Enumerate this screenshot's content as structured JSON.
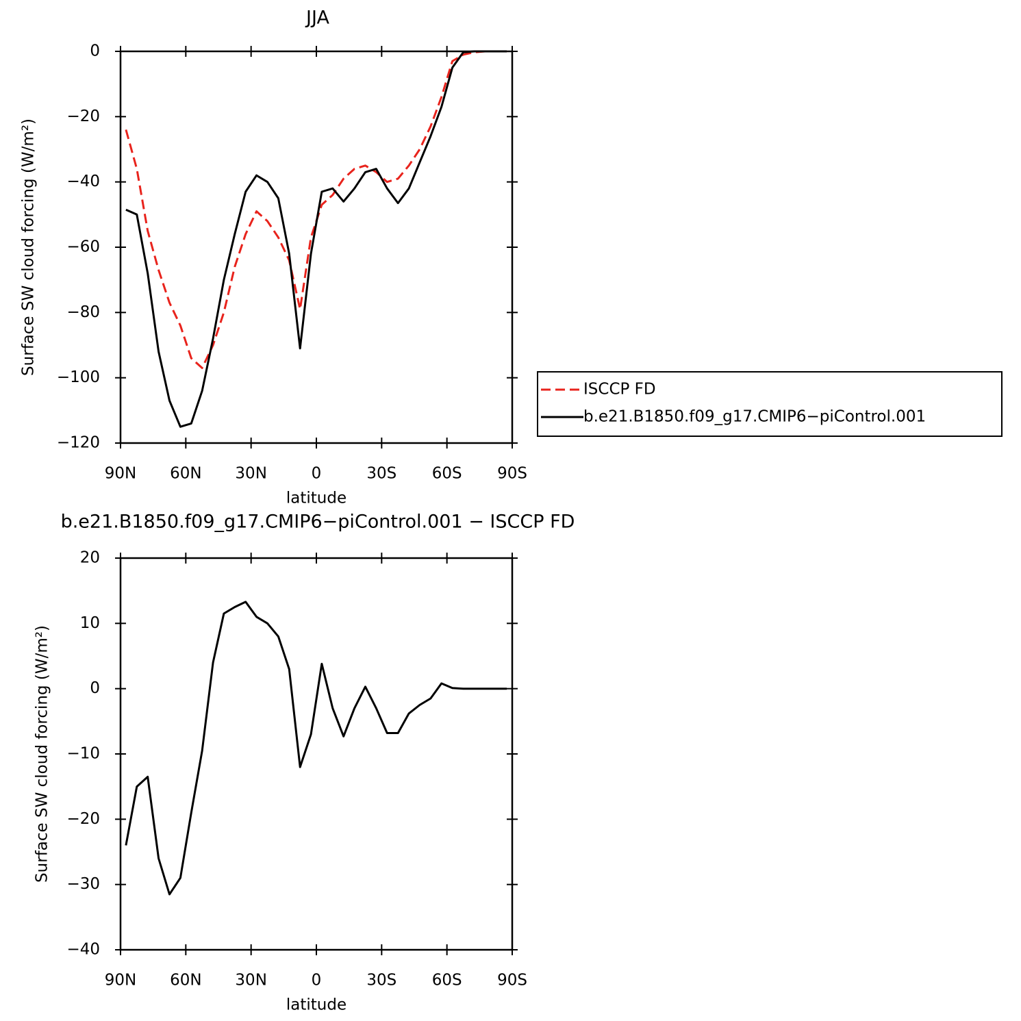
{
  "chart_data": [
    {
      "type": "line",
      "title": "JJA",
      "x_label": "latitude",
      "y_label": "Surface SW cloud forcing (W/m²)",
      "x": [
        87.5,
        82.5,
        77.5,
        72.5,
        67.5,
        62.5,
        57.5,
        52.5,
        47.5,
        42.5,
        37.5,
        32.5,
        27.5,
        22.5,
        17.5,
        12.5,
        7.5,
        2.5,
        -2.5,
        -7.5,
        -12.5,
        -17.5,
        -22.5,
        -27.5,
        -32.5,
        -37.5,
        -42.5,
        -47.5,
        -52.5,
        -57.5,
        -62.5,
        -67.5,
        -72.5,
        -77.5,
        -82.5,
        -87.5
      ],
      "xlim": [
        90,
        -90
      ],
      "xticks": [
        {
          "value": 90,
          "label": "90N"
        },
        {
          "value": 60,
          "label": "60N"
        },
        {
          "value": 30,
          "label": "30N"
        },
        0,
        {
          "value": -30,
          "label": "30S"
        },
        {
          "value": -60,
          "label": "60S"
        },
        {
          "value": -90,
          "label": "90S"
        }
      ],
      "ylim": [
        -120,
        0
      ],
      "yticks": [
        {
          "value": -120,
          "label": "−120"
        },
        {
          "value": -100,
          "label": "−100"
        },
        {
          "value": -80,
          "label": "−80"
        },
        {
          "value": -60,
          "label": "−60"
        },
        {
          "value": -40,
          "label": "−40"
        },
        {
          "value": -20,
          "label": "−20"
        },
        0
      ],
      "legend": "right",
      "series": [
        {
          "name": "ISCCP FD",
          "color": "#e8231c",
          "style": "dashed",
          "values": [
            -24,
            -36,
            -55,
            -67,
            -77,
            -84,
            -94,
            -97,
            -90,
            -80,
            -66,
            -56,
            -49,
            -52,
            -57,
            -64,
            -79,
            -57,
            -47,
            -44,
            -39,
            -36,
            -35,
            -37,
            -40,
            -39,
            -35,
            -30,
            -23,
            -14,
            -3,
            -1,
            -0.3,
            0,
            0,
            0
          ]
        },
        {
          "name": "b.e21.B1850.f09_g17.CMIP6−piControl.001",
          "color": "#000000",
          "style": "solid",
          "values": [
            -48.5,
            -50,
            -68,
            -92,
            -107,
            -115,
            -114,
            -104,
            -88,
            -70,
            -56,
            -43,
            -38,
            -40,
            -45,
            -62,
            -91,
            -62,
            -43,
            -42,
            -46,
            -42,
            -37,
            -36,
            -42,
            -46.5,
            -42,
            -34,
            -26,
            -17,
            -5,
            -0.3,
            0,
            0,
            0,
            0
          ]
        }
      ]
    },
    {
      "type": "line",
      "title": "b.e21.B1850.f09_g17.CMIP6−piControl.001  −  ISCCP FD",
      "x_label": "latitude",
      "y_label": "Surface SW cloud forcing (W/m²)",
      "x": [
        87.5,
        82.5,
        77.5,
        72.5,
        67.5,
        62.5,
        57.5,
        52.5,
        47.5,
        42.5,
        37.5,
        32.5,
        27.5,
        22.5,
        17.5,
        12.5,
        7.5,
        2.5,
        -2.5,
        -7.5,
        -12.5,
        -17.5,
        -22.5,
        -27.5,
        -32.5,
        -37.5,
        -42.5,
        -47.5,
        -52.5,
        -57.5,
        -62.5,
        -67.5,
        -72.5,
        -77.5,
        -82.5,
        -87.5
      ],
      "xlim": [
        90,
        -90
      ],
      "xticks": [
        {
          "value": 90,
          "label": "90N"
        },
        {
          "value": 60,
          "label": "60N"
        },
        {
          "value": 30,
          "label": "30N"
        },
        0,
        {
          "value": -30,
          "label": "30S"
        },
        {
          "value": -60,
          "label": "60S"
        },
        {
          "value": -90,
          "label": "90S"
        }
      ],
      "ylim": [
        -40,
        20
      ],
      "yticks": [
        {
          "value": -40,
          "label": "−40"
        },
        {
          "value": -30,
          "label": "−30"
        },
        {
          "value": -20,
          "label": "−20"
        },
        {
          "value": -10,
          "label": "−10"
        },
        0,
        10,
        20
      ],
      "color": "#000000",
      "values": [
        -24,
        -15,
        -13.5,
        -26,
        -31.5,
        -29,
        -19,
        -9.5,
        4,
        11.5,
        12.5,
        13.3,
        11,
        10,
        8,
        3,
        -12,
        -7,
        3.8,
        -3,
        -7.3,
        -3,
        0.3,
        -3,
        -6.8,
        -6.8,
        -3.8,
        -2.5,
        -1.5,
        0.8,
        0.1,
        0,
        0,
        0,
        0,
        0
      ]
    }
  ]
}
